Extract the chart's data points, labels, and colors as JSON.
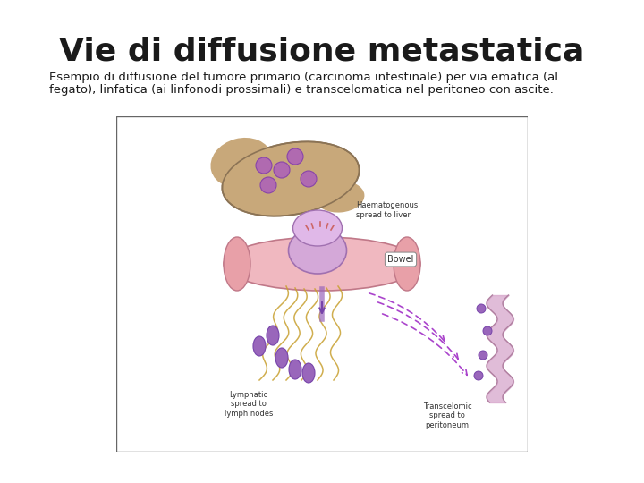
{
  "title": "Vie di diffusione metastatica",
  "subtitle_line1": "Esempio di diffusione del tumore primario (carcinoma intestinale) per via ematica (al",
  "subtitle_line2": "fegato), linfatica (ai linfonodi prossimali) e transcelomatica nel peritoneo con ascite.",
  "background_color": "#ffffff",
  "title_fontsize": 26,
  "subtitle_fontsize": 9.5,
  "title_color": "#1a1a1a",
  "subtitle_color": "#1a1a1a",
  "border_color": "#666666",
  "border_linewidth": 1.0,
  "liver_color": "#c8a87a",
  "liver_edge": "#8b7355",
  "spot_color": "#b06ab0",
  "spot_edge": "#8844aa",
  "vessel_pink": "#e8a0a8",
  "vessel_edge": "#c07080",
  "tumor_color": "#d4a8d8",
  "tumor_edge": "#a070b0",
  "bowel_color": "#f0b8c0",
  "bowel_edge": "#c07888",
  "lymph_color": "#c8a030",
  "lymph_node_color": "#9966bb",
  "lymph_node_edge": "#7744aa",
  "arrow_color": "#9944aa",
  "peritoneal_color": "#d4a0c8",
  "trans_arrow_color": "#aa44cc",
  "label_color": "#333333"
}
